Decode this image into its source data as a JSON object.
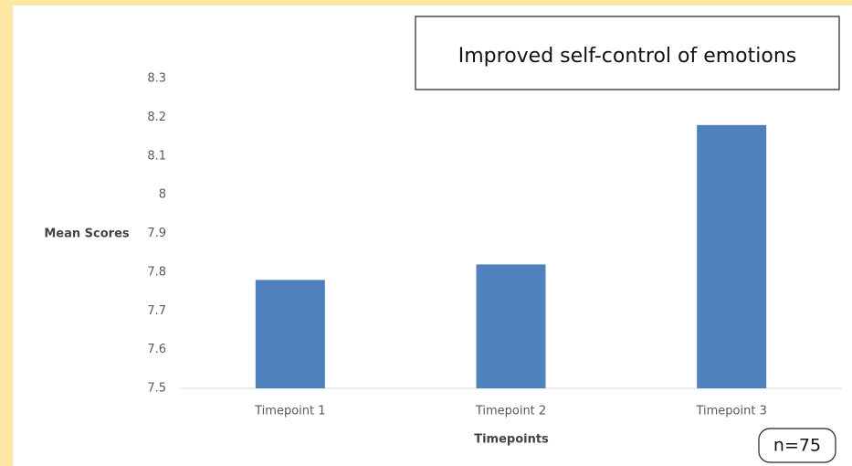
{
  "chart_data": {
    "type": "bar",
    "title": "Improved self-control of emotions",
    "categories": [
      "Timepoint 1",
      "Timepoint 2",
      "Timepoint 3"
    ],
    "values": [
      7.78,
      7.82,
      8.18
    ],
    "color": "#4f81bd",
    "ylabel": "Mean Scores",
    "xlabel": "Timepoints",
    "annotation": "n=75",
    "ylim": [
      7.5,
      8.3
    ],
    "yticks": [
      7.5,
      7.6,
      7.7,
      7.8,
      7.9,
      8,
      8.1,
      8.2,
      8.3
    ],
    "grid": false
  }
}
